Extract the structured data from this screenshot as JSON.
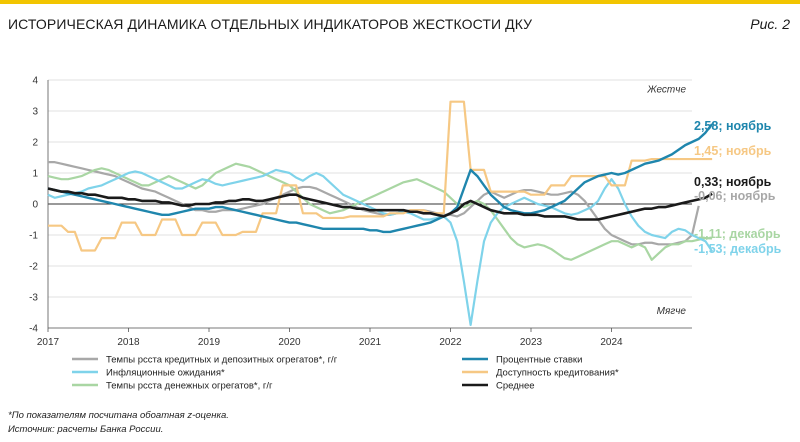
{
  "header": {
    "title": "ИСТОРИЧЕСКАЯ ДИНАМИКА ОТДЕЛЬНЫХ ИНДИКАТОРОВ ЖЕСТКОСТИ ДКУ",
    "figure_label": "Рис. 2"
  },
  "colors": {
    "accent": "#f2c500",
    "gray": "#a8a8a8",
    "lightblue": "#7fd3ea",
    "green": "#a9d6a3",
    "blue": "#1f86ad",
    "orange": "#f6c884",
    "black": "#1a1a1a"
  },
  "chart_data": {
    "type": "line",
    "x_tick_labels": [
      "2017",
      "2018",
      "2019",
      "2020",
      "2021",
      "2022",
      "2023",
      "2024"
    ],
    "ylim": [
      -4,
      4
    ],
    "y_ticks": [
      -4,
      -3,
      -2,
      -1,
      0,
      1,
      2,
      3,
      4
    ],
    "annotation_top": "Жестче",
    "annotation_bottom": "Мягче",
    "grid": "horizontal",
    "x_start": "2017-01",
    "series": [
      {
        "name": "Темпы рсста кредитных и депозитных огрегатов*, г/г",
        "color": "#a8a8a8",
        "label": "-0,06; ноябрь",
        "values": [
          1.35,
          1.35,
          1.3,
          1.25,
          1.2,
          1.15,
          1.1,
          1.05,
          1.0,
          0.95,
          0.9,
          0.8,
          0.7,
          0.6,
          0.5,
          0.45,
          0.4,
          0.3,
          0.2,
          0.1,
          0.0,
          -0.1,
          -0.2,
          -0.2,
          -0.25,
          -0.25,
          -0.2,
          -0.2,
          -0.2,
          -0.15,
          -0.1,
          -0.05,
          0.0,
          0.1,
          0.2,
          0.3,
          0.4,
          0.5,
          0.55,
          0.55,
          0.5,
          0.4,
          0.3,
          0.2,
          0.1,
          0.0,
          -0.1,
          -0.2,
          -0.25,
          -0.3,
          -0.35,
          -0.35,
          -0.3,
          -0.25,
          -0.2,
          -0.2,
          -0.2,
          -0.25,
          -0.3,
          -0.35,
          -0.35,
          -0.4,
          -0.3,
          -0.1,
          0.1,
          0.3,
          0.4,
          0.3,
          0.2,
          0.3,
          0.4,
          0.45,
          0.45,
          0.4,
          0.35,
          0.3,
          0.3,
          0.35,
          0.4,
          0.3,
          0.1,
          -0.2,
          -0.5,
          -0.8,
          -1.0,
          -1.1,
          -1.2,
          -1.3,
          -1.3,
          -1.25,
          -1.25,
          -1.3,
          -1.3,
          -1.3,
          -1.25,
          -1.2,
          -1.0,
          -0.06
        ]
      },
      {
        "name": "Инфляционные ожидания*",
        "color": "#7fd3ea",
        "label": "-1,53; декабрь",
        "values": [
          0.3,
          0.2,
          0.25,
          0.3,
          0.35,
          0.4,
          0.5,
          0.55,
          0.6,
          0.7,
          0.8,
          0.9,
          1.0,
          1.05,
          1.0,
          0.9,
          0.8,
          0.7,
          0.6,
          0.5,
          0.5,
          0.6,
          0.7,
          0.8,
          0.75,
          0.65,
          0.6,
          0.65,
          0.7,
          0.75,
          0.8,
          0.85,
          0.9,
          1.0,
          1.1,
          1.05,
          1.0,
          0.85,
          0.75,
          0.9,
          1.0,
          0.9,
          0.7,
          0.5,
          0.3,
          0.2,
          0.1,
          0.0,
          -0.1,
          -0.2,
          -0.3,
          -0.35,
          -0.3,
          -0.25,
          -0.3,
          -0.4,
          -0.5,
          -0.5,
          -0.45,
          -0.4,
          -0.6,
          -1.2,
          -2.5,
          -3.9,
          -2.5,
          -1.2,
          -0.6,
          -0.3,
          -0.1,
          0.0,
          0.1,
          0.2,
          0.1,
          0.0,
          -0.05,
          -0.1,
          -0.2,
          -0.3,
          -0.35,
          -0.3,
          -0.2,
          -0.1,
          0.1,
          0.5,
          0.8,
          0.5,
          0.0,
          -0.4,
          -0.7,
          -0.9,
          -1.0,
          -1.05,
          -1.1,
          -0.9,
          -0.8,
          -0.85,
          -1.0,
          -1.1,
          -1.2,
          -1.53
        ]
      },
      {
        "name": "Темпы рсста денежных огрегатов*, г/г",
        "color": "#a9d6a3",
        "label": "-1,11; декабрь",
        "values": [
          0.9,
          0.85,
          0.8,
          0.8,
          0.85,
          0.9,
          1.0,
          1.1,
          1.15,
          1.1,
          1.0,
          0.9,
          0.8,
          0.7,
          0.6,
          0.6,
          0.7,
          0.8,
          0.9,
          0.8,
          0.7,
          0.6,
          0.5,
          0.6,
          0.8,
          1.0,
          1.1,
          1.2,
          1.3,
          1.25,
          1.2,
          1.1,
          1.0,
          0.9,
          0.8,
          0.7,
          0.6,
          0.4,
          0.2,
          0.0,
          -0.1,
          -0.2,
          -0.3,
          -0.25,
          -0.2,
          -0.1,
          0.0,
          0.1,
          0.2,
          0.3,
          0.4,
          0.5,
          0.6,
          0.7,
          0.75,
          0.8,
          0.7,
          0.6,
          0.5,
          0.4,
          0.2,
          0.0,
          -0.1,
          0.0,
          0.1,
          0.0,
          -0.2,
          -0.5,
          -0.8,
          -1.1,
          -1.3,
          -1.4,
          -1.35,
          -1.3,
          -1.35,
          -1.45,
          -1.6,
          -1.75,
          -1.8,
          -1.7,
          -1.6,
          -1.5,
          -1.4,
          -1.3,
          -1.2,
          -1.2,
          -1.3,
          -1.4,
          -1.3,
          -1.4,
          -1.8,
          -1.6,
          -1.4,
          -1.3,
          -1.3,
          -1.2,
          -1.2,
          -1.15,
          -1.1,
          -1.11
        ]
      },
      {
        "name": "Процентные ставки",
        "color": "#1f86ad",
        "label": "2,58; ноябрь",
        "values": [
          0.5,
          0.45,
          0.4,
          0.35,
          0.3,
          0.25,
          0.2,
          0.15,
          0.1,
          0.05,
          0.0,
          -0.05,
          -0.1,
          -0.15,
          -0.2,
          -0.25,
          -0.3,
          -0.35,
          -0.35,
          -0.3,
          -0.25,
          -0.2,
          -0.15,
          -0.15,
          -0.15,
          -0.1,
          -0.1,
          -0.15,
          -0.2,
          -0.25,
          -0.3,
          -0.35,
          -0.4,
          -0.45,
          -0.5,
          -0.55,
          -0.6,
          -0.6,
          -0.65,
          -0.7,
          -0.75,
          -0.8,
          -0.8,
          -0.8,
          -0.8,
          -0.8,
          -0.8,
          -0.8,
          -0.85,
          -0.85,
          -0.9,
          -0.9,
          -0.85,
          -0.8,
          -0.75,
          -0.7,
          -0.65,
          -0.6,
          -0.5,
          -0.4,
          -0.3,
          -0.1,
          0.5,
          1.1,
          0.9,
          0.6,
          0.3,
          0.1,
          -0.1,
          -0.2,
          -0.25,
          -0.3,
          -0.3,
          -0.25,
          -0.2,
          -0.1,
          0.0,
          0.1,
          0.3,
          0.5,
          0.7,
          0.8,
          0.9,
          0.95,
          1.0,
          0.95,
          1.0,
          1.1,
          1.2,
          1.3,
          1.35,
          1.4,
          1.5,
          1.6,
          1.75,
          1.9,
          2.0,
          2.1,
          2.3,
          2.58
        ]
      },
      {
        "name": "Доступность кредитования*",
        "color": "#f6c884",
        "label": "1,45; ноябрь",
        "values": [
          -0.7,
          -0.7,
          -0.7,
          -0.9,
          -0.9,
          -1.5,
          -1.5,
          -1.5,
          -1.1,
          -1.1,
          -1.1,
          -0.6,
          -0.6,
          -0.6,
          -1.0,
          -1.0,
          -1.0,
          -0.5,
          -0.5,
          -0.5,
          -1.0,
          -1.0,
          -1.0,
          -0.6,
          -0.6,
          -0.6,
          -1.0,
          -1.0,
          -1.0,
          -0.9,
          -0.9,
          -0.9,
          -0.3,
          -0.3,
          -0.3,
          0.6,
          0.6,
          0.6,
          -0.3,
          -0.3,
          -0.3,
          -0.45,
          -0.45,
          -0.45,
          -0.45,
          -0.4,
          -0.4,
          -0.4,
          -0.4,
          -0.4,
          -0.4,
          -0.3,
          -0.3,
          -0.3,
          -0.2,
          -0.2,
          -0.2,
          -0.3,
          -0.3,
          -0.3,
          3.3,
          3.3,
          3.3,
          1.1,
          1.1,
          1.1,
          0.4,
          0.4,
          0.4,
          0.4,
          0.4,
          0.4,
          0.3,
          0.3,
          0.3,
          0.6,
          0.6,
          0.6,
          0.9,
          0.9,
          0.9,
          0.9,
          0.9,
          0.9,
          0.6,
          0.6,
          0.6,
          1.4,
          1.4,
          1.4,
          1.45,
          1.45,
          1.45,
          1.45,
          1.45,
          1.45,
          1.45,
          1.45,
          1.45,
          1.45
        ]
      },
      {
        "name": "Среднее",
        "color": "#1a1a1a",
        "label": "0,33; ноябрь",
        "values": [
          0.5,
          0.45,
          0.4,
          0.4,
          0.35,
          0.35,
          0.3,
          0.3,
          0.25,
          0.2,
          0.2,
          0.2,
          0.15,
          0.15,
          0.1,
          0.1,
          0.1,
          0.05,
          0.05,
          0.0,
          -0.05,
          -0.05,
          0.0,
          0.0,
          0.0,
          0.05,
          0.05,
          0.1,
          0.1,
          0.15,
          0.15,
          0.1,
          0.1,
          0.15,
          0.2,
          0.25,
          0.3,
          0.3,
          0.2,
          0.15,
          0.1,
          0.05,
          0.0,
          -0.05,
          -0.1,
          -0.1,
          -0.15,
          -0.15,
          -0.2,
          -0.2,
          -0.2,
          -0.2,
          -0.2,
          -0.2,
          -0.25,
          -0.25,
          -0.3,
          -0.3,
          -0.35,
          -0.4,
          -0.3,
          -0.2,
          0.0,
          0.1,
          0.0,
          -0.1,
          -0.2,
          -0.25,
          -0.3,
          -0.3,
          -0.3,
          -0.35,
          -0.35,
          -0.35,
          -0.4,
          -0.4,
          -0.4,
          -0.4,
          -0.45,
          -0.5,
          -0.5,
          -0.5,
          -0.5,
          -0.45,
          -0.4,
          -0.35,
          -0.3,
          -0.25,
          -0.2,
          -0.15,
          -0.15,
          -0.1,
          -0.1,
          -0.05,
          0.0,
          0.05,
          0.1,
          0.15,
          0.2,
          0.33
        ]
      }
    ]
  },
  "notes": {
    "footnote": "*По показателям посчитана обоатная z-оценка.",
    "source": "Источник: расчеты Банка России."
  }
}
